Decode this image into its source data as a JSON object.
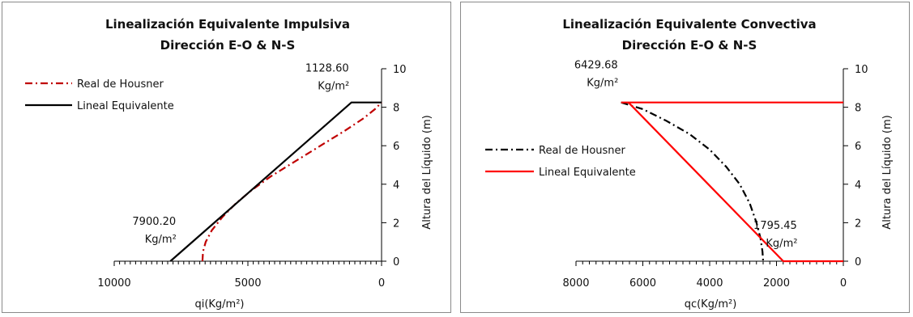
{
  "chart_data": [
    {
      "type": "line",
      "title": "Linealización Equivalente Impulsiva",
      "subtitle": "Dirección E-O & N-S",
      "xlabel": "qi(Kg/m²)",
      "ylabel": "Altura del Líquido (m)",
      "xlim": [
        10000,
        0
      ],
      "ylim": [
        0,
        10
      ],
      "x_reversed": true,
      "x_ticks": [
        "10000",
        "5000",
        "0"
      ],
      "x_tick_values": [
        10000,
        5000,
        0
      ],
      "y_ticks": [
        "0",
        "2",
        "4",
        "6",
        "8",
        "10"
      ],
      "y_tick_values": [
        0,
        2,
        4,
        6,
        8,
        10
      ],
      "legend_position": "top-left",
      "series": [
        {
          "name": "Real de Housner",
          "color": "#c00000",
          "style": "dash-dot",
          "x": [
            6700,
            6680,
            6580,
            6350,
            5950,
            5450,
            4850,
            4150,
            3450,
            2750,
            2050,
            1350,
            700,
            250,
            0
          ],
          "y": [
            0,
            0.5,
            1.0,
            1.6,
            2.3,
            3.0,
            3.7,
            4.4,
            5.0,
            5.6,
            6.2,
            6.8,
            7.4,
            7.9,
            8.25
          ]
        },
        {
          "name": "Lineal Equivalente",
          "color": "#000000",
          "style": "solid",
          "x": [
            7900.2,
            1128.6,
            0
          ],
          "y": [
            0,
            8.25,
            8.25
          ]
        }
      ],
      "annotations": [
        {
          "value": "7900.20",
          "unit": "Kg/m²",
          "x": 7900.2,
          "y": 0
        },
        {
          "value": "1128.60",
          "unit": "Kg/m²",
          "x": 1128.6,
          "y": 8.25
        }
      ]
    },
    {
      "type": "line",
      "title": "Linealización Equivalente Convectiva",
      "subtitle": "Dirección E-O & N-S",
      "xlabel": "qc(Kg/m²)",
      "ylabel": "Altura del Líquido (m)",
      "xlim": [
        8000,
        0
      ],
      "ylim": [
        0,
        10
      ],
      "x_reversed": true,
      "x_ticks": [
        "8000",
        "6000",
        "4000",
        "2000",
        "0"
      ],
      "x_tick_values": [
        8000,
        6000,
        4000,
        2000,
        0
      ],
      "y_ticks": [
        "0",
        "2",
        "4",
        "6",
        "8",
        "10"
      ],
      "y_tick_values": [
        0,
        2,
        4,
        6,
        8,
        10
      ],
      "legend_position": "middle-left",
      "series": [
        {
          "name": "Real de Housner",
          "color": "#000000",
          "style": "dash-dot",
          "x": [
            6650,
            6000,
            5300,
            4600,
            4000,
            3500,
            3100,
            2800,
            2600,
            2480,
            2420,
            2400
          ],
          "y": [
            8.25,
            7.9,
            7.3,
            6.6,
            5.8,
            4.9,
            4.0,
            3.0,
            2.0,
            1.2,
            0.5,
            0
          ]
        },
        {
          "name": "Lineal Equivalente",
          "color": "#ff0000",
          "style": "solid",
          "x": [
            0,
            6650,
            6429.68,
            1795.45,
            0
          ],
          "y": [
            8.25,
            8.25,
            8.25,
            0,
            0
          ]
        }
      ],
      "annotations": [
        {
          "value": "6429.68",
          "unit": "Kg/m²",
          "x": 6429.68,
          "y": 8.25
        },
        {
          "value": "1795.45",
          "unit": "Kg/m²",
          "x": 1795.45,
          "y": 0
        }
      ]
    }
  ]
}
